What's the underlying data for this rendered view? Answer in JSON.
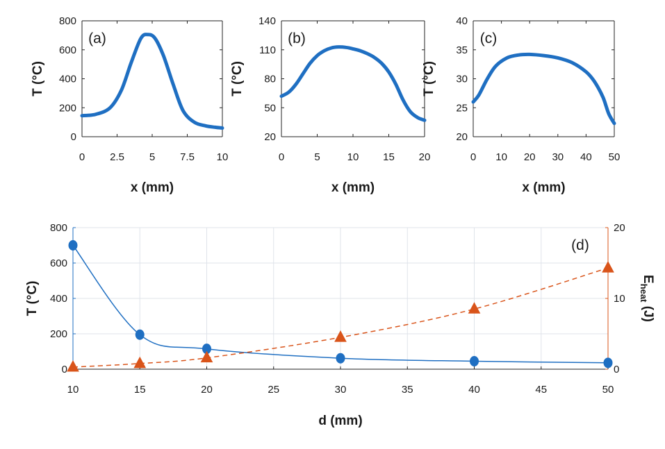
{
  "colors": {
    "blue": "#1f6fc2",
    "orange": "#d9541a",
    "axis": "#222222",
    "grid": "#dfe3ea"
  },
  "chart_data": [
    {
      "type": "line",
      "panel": "(a)",
      "xlabel": "x (mm)",
      "ylabel": "T (°C)",
      "xlim": [
        0,
        10
      ],
      "ylim": [
        0,
        800
      ],
      "xticks": [
        0,
        2.5,
        5,
        7.5,
        10
      ],
      "xtick_labels": [
        "0",
        "2.5",
        "5",
        "7.5",
        "10"
      ],
      "yticks": [
        0,
        200,
        400,
        600,
        800
      ],
      "ytick_labels": [
        "0",
        "200",
        "400",
        "600",
        "800"
      ],
      "series": [
        {
          "name": "T",
          "x": [
            0,
            1,
            2,
            2.8,
            3.5,
            4.2,
            4.7,
            5.2,
            5.8,
            6.5,
            7.2,
            8,
            8.8,
            9.5,
            10
          ],
          "y": [
            145,
            155,
            200,
            320,
            510,
            680,
            705,
            680,
            560,
            360,
            180,
            100,
            75,
            65,
            60
          ]
        }
      ]
    },
    {
      "type": "line",
      "panel": "(b)",
      "xlabel": "x (mm)",
      "ylabel": "T (°C)",
      "xlim": [
        0,
        20
      ],
      "ylim": [
        20,
        140
      ],
      "xticks": [
        0,
        5,
        10,
        15,
        20
      ],
      "xtick_labels": [
        "0",
        "5",
        "10",
        "15",
        "20"
      ],
      "yticks": [
        20,
        50,
        80,
        110,
        140
      ],
      "ytick_labels": [
        "20",
        "50",
        "80",
        "110",
        "140"
      ],
      "series": [
        {
          "name": "T",
          "x": [
            0,
            1,
            2,
            3,
            4,
            5,
            6,
            7,
            8,
            9,
            10,
            11,
            12,
            13,
            14,
            15,
            16,
            17,
            18,
            19,
            20
          ],
          "y": [
            62,
            66,
            74,
            85,
            96,
            104,
            109,
            112,
            113,
            112.5,
            111,
            109,
            106,
            102,
            96,
            87,
            74,
            58,
            46,
            40,
            37
          ]
        }
      ]
    },
    {
      "type": "line",
      "panel": "(c)",
      "xlabel": "x (mm)",
      "ylabel": "T (°C)",
      "xlim": [
        0,
        50
      ],
      "ylim": [
        20,
        40
      ],
      "xticks": [
        0,
        10,
        20,
        30,
        40,
        50
      ],
      "xtick_labels": [
        "0",
        "10",
        "20",
        "30",
        "40",
        "50"
      ],
      "yticks": [
        20,
        25,
        30,
        35,
        40
      ],
      "ytick_labels": [
        "20",
        "25",
        "30",
        "35",
        "40"
      ],
      "series": [
        {
          "name": "T",
          "x": [
            0,
            2,
            5,
            8,
            12,
            16,
            20,
            25,
            30,
            35,
            40,
            43,
            46,
            48,
            50
          ],
          "y": [
            26,
            27.2,
            30,
            32.2,
            33.6,
            34.1,
            34.2,
            34.0,
            33.6,
            32.8,
            31.2,
            29.5,
            26.8,
            24,
            22.3
          ]
        }
      ]
    },
    {
      "type": "line",
      "panel": "(d)",
      "xlabel": "d (mm)",
      "ylabel": "T (°C)",
      "ylabel_right_main": "E",
      "ylabel_right_sub": "heat",
      "ylabel_right_unit": " (J)",
      "xlim": [
        10,
        50
      ],
      "ylim": [
        0,
        800
      ],
      "ylim_right": [
        0,
        20
      ],
      "grid": true,
      "xticks": [
        10,
        15,
        20,
        25,
        30,
        35,
        40,
        45,
        50
      ],
      "xtick_labels": [
        "10",
        "15",
        "20",
        "25",
        "30",
        "35",
        "40",
        "45",
        "50"
      ],
      "yticks": [
        0,
        200,
        400,
        600,
        800
      ],
      "ytick_labels": [
        "0",
        "200",
        "400",
        "600",
        "800"
      ],
      "yticks_right": [
        0,
        10,
        20
      ],
      "ytick_labels_right": [
        "0",
        "10",
        "20"
      ],
      "series": [
        {
          "name": "T",
          "axis": "left",
          "marker": "circle",
          "style": "solid",
          "x": [
            10,
            15,
            20,
            30,
            40,
            50
          ],
          "y": [
            700,
            195,
            115,
            62,
            45,
            36
          ]
        },
        {
          "name": "Eheat",
          "axis": "right",
          "marker": "triangle",
          "style": "dashed",
          "x": [
            10,
            15,
            20,
            30,
            40,
            50
          ],
          "y": [
            0.3,
            0.8,
            1.6,
            4.5,
            8.5,
            14.3
          ]
        }
      ]
    }
  ]
}
